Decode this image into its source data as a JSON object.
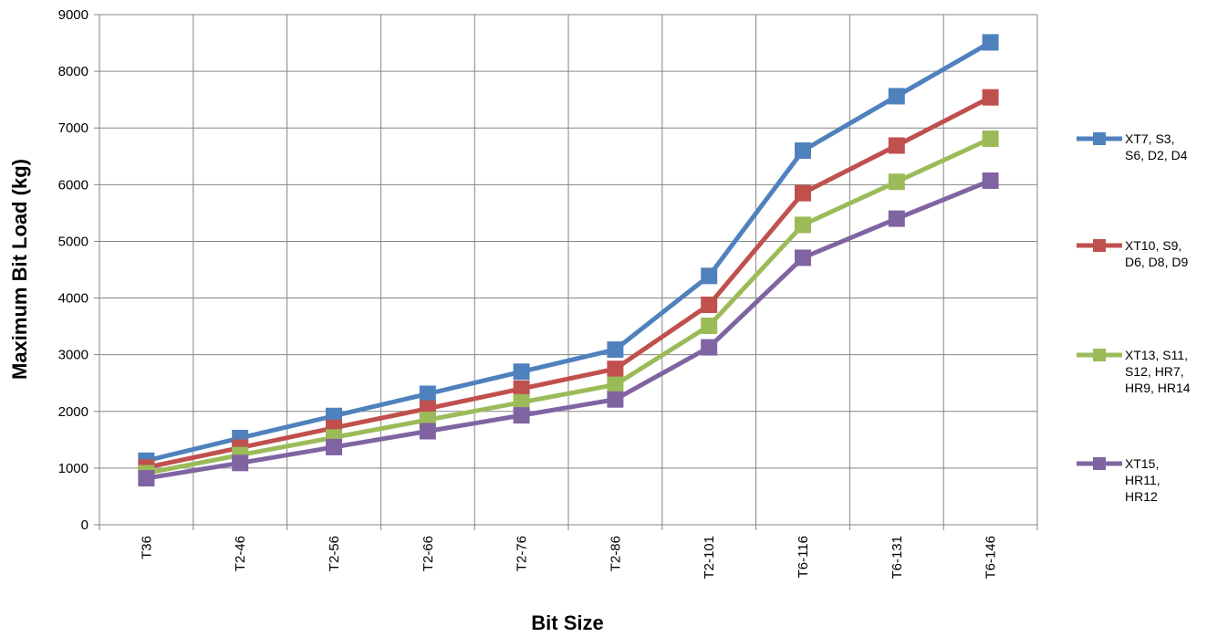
{
  "chart_data": {
    "type": "line",
    "title": "",
    "xlabel": "Bit Size",
    "ylabel": "Maximum Bit Load (kg)",
    "ylim": [
      0,
      9000
    ],
    "yticks": [
      0,
      1000,
      2000,
      3000,
      4000,
      5000,
      6000,
      7000,
      8000,
      9000
    ],
    "ytick_labels": [
      "0",
      "1000",
      "2000",
      "3000",
      "4000",
      "5000",
      "6000",
      "7000",
      "8000",
      "9000"
    ],
    "categories": [
      "T36",
      "T2-46",
      "T2-56",
      "T2-66",
      "T2-76",
      "T2-86",
      "T2-101",
      "T6-116",
      "T6-131",
      "T6-146"
    ],
    "grid": true,
    "legend_position": "right",
    "series": [
      {
        "name": "XT7, S3, S6, D2, D4",
        "label_lines": [
          "XT7, S3,",
          "S6, D2, D4"
        ],
        "color": "#4F81BD",
        "values": [
          1130,
          1530,
          1920,
          2310,
          2700,
          3090,
          4390,
          6600,
          7560,
          8510
        ]
      },
      {
        "name": "XT10, S9, D6, D8, D9",
        "label_lines": [
          "XT10, S9,",
          "D6, D8, D9"
        ],
        "color": "#C0504D",
        "values": [
          1010,
          1360,
          1710,
          2050,
          2400,
          2750,
          3880,
          5850,
          6690,
          7540
        ]
      },
      {
        "name": "XT13, S11, S12, HR7, HR9, HR14",
        "label_lines": [
          "XT13, S11,",
          "S12, HR7,",
          "HR9, HR14"
        ],
        "color": "#9BBB59",
        "values": [
          910,
          1230,
          1540,
          1850,
          2160,
          2470,
          3510,
          5290,
          6050,
          6810
        ]
      },
      {
        "name": "XT15, HR11, HR12",
        "label_lines": [
          "XT15,",
          "HR11,",
          "HR12"
        ],
        "color": "#8064A2",
        "values": [
          820,
          1090,
          1370,
          1650,
          1930,
          2210,
          3130,
          4710,
          5400,
          6070
        ]
      }
    ]
  }
}
